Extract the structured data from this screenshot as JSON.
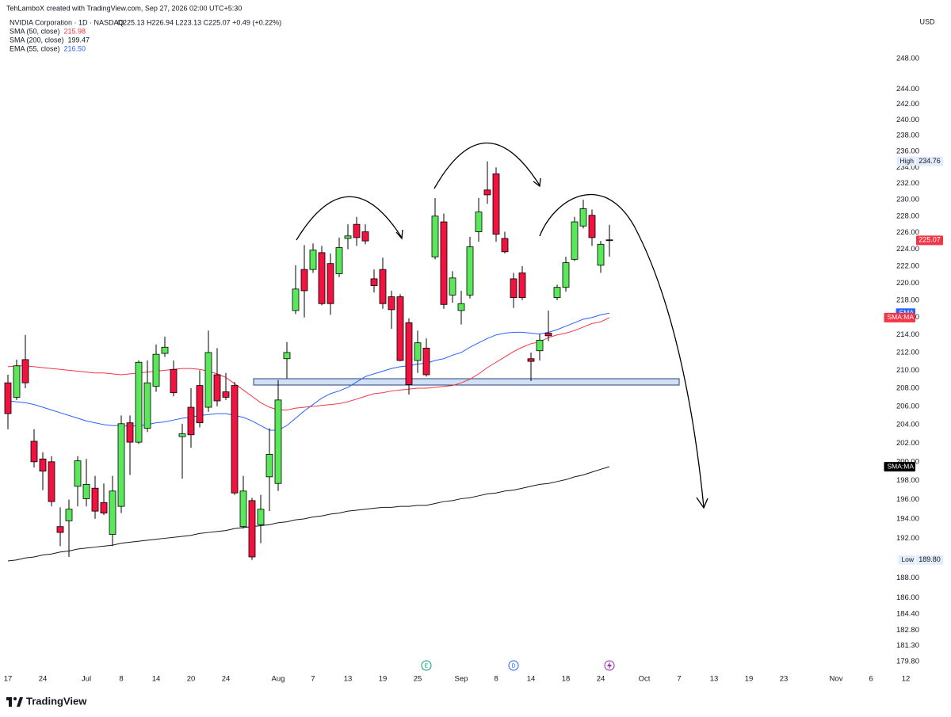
{
  "chart_data": {
    "type": "candlestick",
    "credit": "TehLamboX created with TradingView.com, Sep 27, 2026 02:00 UTC+5:30",
    "symbol": "NVIDIA Corporation · 1D · NASDAQ",
    "quote": "O225.13  H226.94  L223.13  C225.07  +0.49 (+0.22%)",
    "currency": "USD",
    "log_scale": true,
    "grid": false,
    "ylim": [
      178.8,
      253.7
    ],
    "yticks": [
      {
        "value": 248,
        "label": "248.00"
      },
      {
        "value": 244,
        "label": "244.00"
      },
      {
        "value": 242,
        "label": "242.00"
      },
      {
        "value": 240,
        "label": "240.00"
      },
      {
        "value": 238,
        "label": "238.00"
      },
      {
        "value": 236,
        "label": "236.00"
      },
      {
        "value": 234,
        "label": "234.00"
      },
      {
        "value": 232,
        "label": "232.00"
      },
      {
        "value": 230,
        "label": "230.00"
      },
      {
        "value": 228,
        "label": "228.00"
      },
      {
        "value": 226,
        "label": "226.00"
      },
      {
        "value": 224,
        "label": "224.00"
      },
      {
        "value": 222,
        "label": "222.00"
      },
      {
        "value": 220,
        "label": "220.00"
      },
      {
        "value": 218,
        "label": "218.00"
      },
      {
        "value": 216,
        "label": "216.00"
      },
      {
        "value": 214,
        "label": "214.00"
      },
      {
        "value": 212,
        "label": "212.00"
      },
      {
        "value": 210,
        "label": "210.00"
      },
      {
        "value": 208,
        "label": "208.00"
      },
      {
        "value": 206,
        "label": "206.00"
      },
      {
        "value": 204,
        "label": "204.00"
      },
      {
        "value": 202,
        "label": "202.00"
      },
      {
        "value": 200,
        "label": "200.00"
      },
      {
        "value": 198,
        "label": "198.00"
      },
      {
        "value": 196,
        "label": "196.00"
      },
      {
        "value": 194,
        "label": "194.00"
      },
      {
        "value": 192,
        "label": "192.00"
      },
      {
        "value": 188,
        "label": "188.00"
      },
      {
        "value": 186,
        "label": "186.00"
      },
      {
        "value": 184.4,
        "label": "184.40"
      },
      {
        "value": 182.8,
        "label": "182.80"
      },
      {
        "value": 181.3,
        "label": "181.30"
      },
      {
        "value": 179.8,
        "label": "179.80"
      }
    ],
    "categories": [
      "17",
      null,
      null,
      null,
      "24",
      null,
      null,
      null,
      null,
      "Jul",
      null,
      null,
      null,
      "8",
      null,
      null,
      null,
      "14",
      null,
      null,
      null,
      "20",
      null,
      null,
      null,
      "24",
      null,
      null,
      null,
      null,
      null,
      "Aug",
      null,
      null,
      null,
      "7",
      null,
      null,
      null,
      "13",
      null,
      null,
      null,
      "19",
      null,
      null,
      null,
      "25",
      null,
      null,
      null,
      null,
      "Sep",
      null,
      null,
      null,
      "8",
      null,
      null,
      null,
      "14",
      null,
      null,
      null,
      "18",
      null,
      null,
      null,
      "24",
      null,
      null,
      null,
      null,
      "Oct",
      null,
      null,
      null,
      "7",
      null,
      null,
      null,
      "13",
      null,
      null,
      null,
      "19",
      null,
      null,
      null,
      "23",
      null,
      null,
      null,
      null,
      null,
      "Nov",
      null,
      null,
      null,
      "6",
      null,
      null,
      null,
      "12"
    ],
    "candles": {
      "up_color": "#5ae85a",
      "down_color": "#f0123f",
      "open": [
        208.6,
        207,
        211.2,
        202.2,
        200.3,
        200,
        193.2,
        193.8,
        197.4,
        196.1,
        197.2,
        195.7,
        192.4,
        195.3,
        204.2,
        202.1,
        203.6,
        208.2,
        211.9,
        210.1,
        202.7,
        205.9,
        208.3,
        205.9,
        209.5,
        207.6,
        208.3,
        193.2,
        195.9,
        193.4,
        198.4,
        197.7,
        211.3,
        216.8,
        221.6,
        221.6,
        223.6,
        222.3,
        221.1,
        225.3,
        227,
        226.1,
        220.5,
        221.6,
        218.4,
        218.4,
        215.4,
        211.1,
        212.5,
        223.1,
        227.3,
        218.6,
        216.8,
        218.6,
        226.1,
        231.2,
        233.2,
        225.3,
        220.5,
        221.2,
        211.3,
        212.2,
        214.2,
        218.3,
        219.5,
        222.8,
        226.8,
        228.1,
        222.1,
        225.13,
        null,
        null,
        null,
        null,
        null,
        null,
        null,
        null,
        null,
        null,
        null,
        null,
        null,
        null,
        null,
        null,
        null,
        null,
        null,
        null,
        null,
        null,
        null,
        null,
        null,
        null,
        null,
        null,
        null,
        null,
        null,
        null,
        null,
        null
      ],
      "high": [
        209.5,
        211.2,
        214,
        203.5,
        201,
        200.6,
        195.2,
        196,
        200.6,
        200.3,
        198.5,
        197.7,
        198.5,
        205,
        205,
        211.1,
        211.1,
        212.9,
        213.8,
        211.1,
        204.1,
        208,
        210,
        214.5,
        212.5,
        209.7,
        208.7,
        198.5,
        196.2,
        196.5,
        203.6,
        208.9,
        213.2,
        222.1,
        224.5,
        224.7,
        224.4,
        223.5,
        225.4,
        227,
        227.9,
        227,
        221.6,
        223,
        219.1,
        218.7,
        215.9,
        214.5,
        213.6,
        230.2,
        228.3,
        221.4,
        219.1,
        225.5,
        230.2,
        234.76,
        234,
        226.1,
        221.2,
        222,
        212,
        214.1,
        216.8,
        219.8,
        223.1,
        227.9,
        230,
        228.8,
        225,
        226.94,
        null,
        null,
        null,
        null,
        null,
        null,
        null,
        null,
        null,
        null,
        null,
        null,
        null,
        null,
        null,
        null,
        null,
        null,
        null,
        null,
        null,
        null,
        null,
        null,
        null,
        null,
        null,
        null,
        null,
        null,
        null,
        null,
        null,
        null
      ],
      "low": [
        203.5,
        206.7,
        208,
        199.4,
        197,
        195.3,
        191.2,
        190.1,
        195.3,
        195.3,
        194,
        194.4,
        191.2,
        194.6,
        198.6,
        201.9,
        203.2,
        207.6,
        211.5,
        207.1,
        198.2,
        201.5,
        203.7,
        205.4,
        206,
        206.7,
        196.5,
        193,
        189.8,
        191.5,
        194.8,
        196.9,
        209.1,
        216.4,
        216,
        221.2,
        217.4,
        216.3,
        220.7,
        224,
        224.4,
        224.6,
        218.9,
        217,
        214.7,
        211,
        207.3,
        209.7,
        209.3,
        222.8,
        217,
        217.7,
        215.2,
        218.2,
        224.9,
        229.5,
        224.9,
        223.5,
        217.1,
        218,
        208.8,
        211.1,
        213.3,
        218,
        219,
        222.6,
        226.5,
        224.4,
        221.2,
        223.13,
        null,
        null,
        null,
        null,
        null,
        null,
        null,
        null,
        null,
        null,
        null,
        null,
        null,
        null,
        null,
        null,
        null,
        null,
        null,
        null,
        null,
        null,
        null,
        null,
        null,
        null,
        null,
        null,
        null,
        null,
        null,
        null,
        null,
        null
      ],
      "close": [
        205.2,
        210.5,
        208.6,
        200,
        199,
        195.8,
        192.6,
        195,
        200.1,
        197.6,
        194.8,
        194.6,
        196.9,
        204.1,
        202.1,
        210.9,
        208.6,
        211.8,
        212.6,
        207.5,
        203,
        202.9,
        204.2,
        212,
        206.6,
        207,
        196.7,
        196.9,
        190.1,
        195,
        200.8,
        206.7,
        212,
        219.3,
        219.1,
        223.9,
        217.6,
        217.6,
        224.2,
        225.6,
        225.4,
        225,
        219.7,
        217.6,
        216.9,
        211.1,
        208.4,
        213.1,
        209.5,
        228,
        217.5,
        220.6,
        217.6,
        224.3,
        228.5,
        230.6,
        225.8,
        223.7,
        218.3,
        218.3,
        211,
        213.4,
        213.9,
        219.5,
        222.4,
        227.3,
        228.9,
        225.4,
        224.6,
        225.07,
        null,
        null,
        null,
        null,
        null,
        null,
        null,
        null,
        null,
        null,
        null,
        null,
        null,
        null,
        null,
        null,
        null,
        null,
        null,
        null,
        null,
        null,
        null,
        null,
        null,
        null,
        null,
        null,
        null,
        null,
        null,
        null,
        null,
        null
      ]
    },
    "series": [
      {
        "name": "SMA (50, close)",
        "legend_value": "215.98",
        "color": "#f23645",
        "values": [
          210.4,
          210.5,
          210.5,
          210.4,
          210.3,
          210.2,
          210.1,
          210,
          209.9,
          209.8,
          209.7,
          209.7,
          209.6,
          209.5,
          209.6,
          209.7,
          209.8,
          209.9,
          210,
          210.1,
          210.2,
          210.2,
          210.1,
          209.9,
          209.6,
          209.2,
          208.5,
          207.8,
          207.1,
          206.4,
          205.9,
          205.6,
          205.6,
          205.8,
          205.9,
          206,
          206.1,
          206.2,
          206.3,
          206.5,
          206.8,
          207.1,
          207.4,
          207.5,
          207.7,
          207.8,
          207.9,
          208,
          208,
          208.1,
          208.2,
          208.3,
          208.6,
          209,
          209.6,
          210.3,
          210.9,
          211.5,
          212.1,
          212.6,
          213,
          213.2,
          213.7,
          214,
          214.2,
          214.5,
          214.9,
          215.3,
          215.5,
          215.98,
          null,
          null,
          null,
          null,
          null,
          null,
          null,
          null,
          null,
          null,
          null,
          null,
          null,
          null,
          null,
          null,
          null,
          null,
          null,
          null,
          null,
          null,
          null,
          null,
          null,
          null,
          null,
          null,
          null,
          null,
          null,
          null,
          null,
          null
        ]
      },
      {
        "name": "SMA (200, close)",
        "legend_value": "199.47",
        "color": "#131722",
        "values": [
          189.7,
          189.8,
          190,
          190.1,
          190.3,
          190.4,
          190.6,
          190.7,
          190.9,
          191,
          191.1,
          191.2,
          191.3,
          191.5,
          191.6,
          191.7,
          191.8,
          191.9,
          192,
          192.1,
          192.2,
          192.3,
          192.5,
          192.6,
          192.7,
          192.8,
          193,
          193.1,
          193.2,
          193.3,
          193.4,
          193.6,
          193.7,
          193.9,
          194,
          194.2,
          194.3,
          194.5,
          194.6,
          194.8,
          194.9,
          195,
          195.1,
          195.2,
          195.2,
          195.3,
          195.3,
          195.4,
          195.4,
          195.6,
          195.8,
          195.9,
          196.1,
          196.2,
          196.4,
          196.6,
          196.7,
          196.9,
          197,
          197.2,
          197.4,
          197.6,
          197.7,
          197.9,
          198.1,
          198.4,
          198.6,
          198.9,
          199.2,
          199.47,
          null,
          null,
          null,
          null,
          null,
          null,
          null,
          null,
          null,
          null,
          null,
          null,
          null,
          null,
          null,
          null,
          null,
          null,
          null,
          null,
          null,
          null,
          null,
          null,
          null,
          null,
          null,
          null,
          null,
          null,
          null,
          null,
          null,
          null
        ]
      },
      {
        "name": "EMA (55, close)",
        "legend_value": "216.50",
        "color": "#2962ff",
        "values": [
          206.6,
          206.5,
          206.4,
          206.2,
          205.9,
          205.6,
          205.3,
          205,
          204.7,
          204.4,
          204.2,
          204,
          203.9,
          203.9,
          203.8,
          203.9,
          204,
          204.2,
          204.3,
          204.5,
          204.7,
          204.8,
          205,
          205.1,
          205.2,
          205.2,
          205,
          204.8,
          204.4,
          203.9,
          203.4,
          203.4,
          203.9,
          204.7,
          205.5,
          206.2,
          206.9,
          207.4,
          207.7,
          208.1,
          208.7,
          209.3,
          209.6,
          209.9,
          210.2,
          210.4,
          210.5,
          210.7,
          210.8,
          211.1,
          211.3,
          211.7,
          212,
          212.6,
          213.1,
          213.6,
          214,
          214.2,
          214.3,
          214.3,
          214.2,
          214.1,
          214.3,
          214.6,
          215,
          215.4,
          215.8,
          216,
          216.3,
          216.5,
          null,
          null,
          null,
          null,
          null,
          null,
          null,
          null,
          null,
          null,
          null,
          null,
          null,
          null,
          null,
          null,
          null,
          null,
          null,
          null,
          null,
          null,
          null,
          null,
          null,
          null,
          null,
          null,
          null,
          null,
          null,
          null,
          null,
          null
        ]
      }
    ],
    "price_markers": [
      {
        "name": "High",
        "value": 234.76,
        "color": "#e3ecf9",
        "text_color": "#131722"
      },
      {
        "value": 225.07,
        "color": "#f23645",
        "text_color": "#ffffff"
      },
      {
        "name": "EMA",
        "value": 216.5,
        "color": "#2962ff",
        "text_color": "#ffffff"
      },
      {
        "name": "SMA:MA",
        "value": 215.98,
        "color": "#f23645",
        "text_color": "#ffffff"
      },
      {
        "name": "SMA:MA",
        "value": 199.47,
        "color": "#000000",
        "text_color": "#ffffff"
      },
      {
        "name": "Low",
        "value": 189.8,
        "value_label": "189.80",
        "color": "#e3ecf9",
        "text_color": "#131722"
      }
    ],
    "events": [
      "E",
      "D"
    ],
    "brand": "TradingView"
  }
}
